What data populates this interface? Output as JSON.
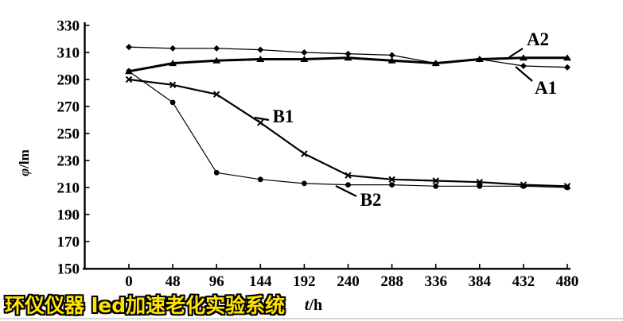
{
  "chart_data": {
    "type": "line",
    "title": "",
    "xlabel": "t/h",
    "ylabel": "φ/lm",
    "x": [
      0,
      48,
      96,
      144,
      192,
      240,
      288,
      336,
      384,
      432,
      480
    ],
    "x_ticks": [
      0,
      48,
      96,
      144,
      192,
      240,
      288,
      336,
      384,
      432,
      480
    ],
    "y_ticks": [
      150,
      170,
      190,
      210,
      230,
      250,
      270,
      290,
      310,
      330
    ],
    "xlim": [
      0,
      480
    ],
    "ylim": [
      150,
      330
    ],
    "grid": false,
    "line_color": "#000000",
    "legend_position": "inline-annotations",
    "series": [
      {
        "name": "A1",
        "marker": "diamond",
        "values": [
          314,
          313,
          313,
          312,
          310,
          309,
          308,
          302,
          305,
          300,
          299
        ]
      },
      {
        "name": "A2",
        "marker": "triangle",
        "values": [
          296,
          302,
          304,
          305,
          305,
          306,
          304,
          302,
          305,
          306,
          306
        ]
      },
      {
        "name": "B1",
        "marker": "x",
        "values": [
          290,
          286,
          279,
          258,
          235,
          219,
          216,
          215,
          214,
          212,
          211
        ]
      },
      {
        "name": "B2",
        "marker": "circle",
        "values": [
          296,
          273,
          221,
          216,
          213,
          212,
          212,
          211,
          211,
          211,
          210
        ]
      }
    ],
    "annotations": [
      {
        "label": "A2"
      },
      {
        "label": "A1"
      },
      {
        "label": "B1"
      },
      {
        "label": "B2"
      }
    ]
  },
  "watermark": {
    "text": "环仪仪器 led加速老化实验系统",
    "color": "#ffe400",
    "outline_color": "#000000"
  }
}
